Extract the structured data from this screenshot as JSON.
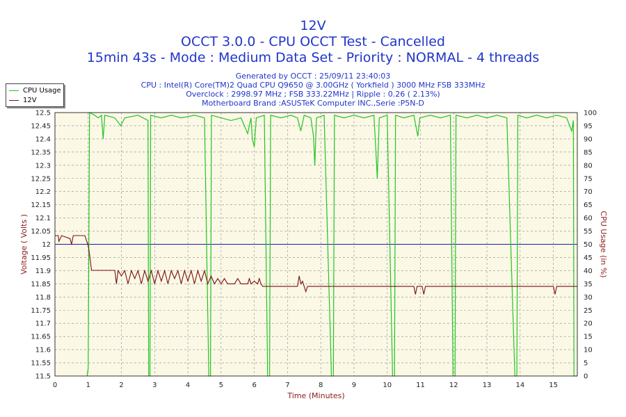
{
  "header": {
    "title": "12V",
    "subtitle": "OCCT 3.0.0 - CPU OCCT Test - Cancelled",
    "mode_line": "15min 43s - Mode : Medium Data Set - Priority : NORMAL - 4 threads",
    "generated": "Generated by OCCT : 25/09/11 23:40:03",
    "cpu": "CPU : Intel(R) Core(TM)2 Quad CPU Q9650 @ 3.00GHz ( Yorkfield ) 3000 MHz FSB 333MHz",
    "overclock": "Overclock : 2998.97 MHz ; FSB 333.22MHz | Ripple : 0.26 ( 2.13%)",
    "motherboard": "Motherboard Brand :ASUSTeK Computer INC.,Serie :P5N-D"
  },
  "legend": {
    "items": [
      "CPU Usage",
      "12V"
    ]
  },
  "colors": {
    "cpu": "#22c422",
    "volt": "#7a1010",
    "ref": "#1a1aa8",
    "plot_bg": "#fbf8e6",
    "grid": "#8a8a8a",
    "label": "#8b1a1a"
  },
  "chart_data": {
    "type": "line",
    "xlabel": "Time (Minutes)",
    "ylabel_left": "Voltage ( Volts )",
    "ylabel_right": "CPU Usage (in %)",
    "xlim": [
      0,
      15.72
    ],
    "ylim_left": [
      11.5,
      12.5
    ],
    "ylim_right": [
      0,
      100
    ],
    "x_ticks": [
      0,
      1,
      2,
      3,
      4,
      5,
      6,
      7,
      8,
      9,
      10,
      11,
      12,
      13,
      14,
      15
    ],
    "y_left_ticks": [
      "11.5",
      "11.55",
      "11.6",
      "11.65",
      "11.7",
      "11.75",
      "11.8",
      "11.85",
      "11.9",
      "11.95",
      "12",
      "12.05",
      "12.1",
      "12.15",
      "12.2",
      "12.25",
      "12.3",
      "12.35",
      "12.4",
      "12.45",
      "12.5"
    ],
    "y_right_ticks": [
      0,
      5,
      10,
      15,
      20,
      25,
      30,
      35,
      40,
      45,
      50,
      55,
      60,
      65,
      70,
      75,
      80,
      85,
      90,
      95,
      100
    ],
    "grid": true,
    "legend_position": "top-left",
    "reference_line": {
      "axis": "left",
      "y": 12.0
    },
    "series": [
      {
        "name": "CPU Usage",
        "axis": "right",
        "points": [
          [
            0.97,
            0
          ],
          [
            1.0,
            3
          ],
          [
            1.04,
            100
          ],
          [
            1.2,
            99
          ],
          [
            1.3,
            98
          ],
          [
            1.4,
            99
          ],
          [
            1.45,
            90
          ],
          [
            1.5,
            99
          ],
          [
            1.8,
            98
          ],
          [
            1.98,
            95
          ],
          [
            2.1,
            98
          ],
          [
            2.5,
            99
          ],
          [
            2.8,
            97
          ],
          [
            2.82,
            0
          ],
          [
            2.86,
            0
          ],
          [
            2.88,
            99
          ],
          [
            3.2,
            98
          ],
          [
            3.5,
            99
          ],
          [
            3.8,
            98
          ],
          [
            4.2,
            99
          ],
          [
            4.5,
            98
          ],
          [
            4.63,
            0
          ],
          [
            4.68,
            0
          ],
          [
            4.71,
            99
          ],
          [
            5.0,
            98
          ],
          [
            5.3,
            97
          ],
          [
            5.6,
            98
          ],
          [
            5.8,
            92
          ],
          [
            5.9,
            98
          ],
          [
            5.94,
            90
          ],
          [
            6.0,
            87
          ],
          [
            6.06,
            98
          ],
          [
            6.3,
            99
          ],
          [
            6.4,
            0
          ],
          [
            6.46,
            0
          ],
          [
            6.49,
            99
          ],
          [
            6.8,
            98
          ],
          [
            7.1,
            99
          ],
          [
            7.3,
            98
          ],
          [
            7.4,
            93
          ],
          [
            7.5,
            99
          ],
          [
            7.7,
            98
          ],
          [
            7.78,
            91
          ],
          [
            7.82,
            80
          ],
          [
            7.87,
            98
          ],
          [
            8.1,
            99
          ],
          [
            8.32,
            0
          ],
          [
            8.38,
            0
          ],
          [
            8.41,
            99
          ],
          [
            8.7,
            98
          ],
          [
            9.0,
            99
          ],
          [
            9.3,
            98
          ],
          [
            9.6,
            99
          ],
          [
            9.66,
            85
          ],
          [
            9.7,
            75
          ],
          [
            9.76,
            98
          ],
          [
            10.0,
            99
          ],
          [
            10.16,
            0
          ],
          [
            10.22,
            0
          ],
          [
            10.25,
            99
          ],
          [
            10.5,
            98
          ],
          [
            10.8,
            99
          ],
          [
            10.92,
            91
          ],
          [
            10.98,
            98
          ],
          [
            11.3,
            99
          ],
          [
            11.6,
            98
          ],
          [
            11.9,
            99
          ],
          [
            11.98,
            0
          ],
          [
            12.04,
            0
          ],
          [
            12.07,
            99
          ],
          [
            12.4,
            98
          ],
          [
            12.7,
            99
          ],
          [
            13.0,
            98
          ],
          [
            13.3,
            99
          ],
          [
            13.6,
            98
          ],
          [
            13.84,
            0
          ],
          [
            13.9,
            0
          ],
          [
            13.93,
            99
          ],
          [
            14.2,
            98
          ],
          [
            14.5,
            99
          ],
          [
            14.8,
            98
          ],
          [
            15.1,
            99
          ],
          [
            15.4,
            98
          ],
          [
            15.55,
            93
          ],
          [
            15.6,
            97
          ],
          [
            15.62,
            0
          ],
          [
            15.72,
            0
          ]
        ]
      },
      {
        "name": "12V",
        "axis": "left",
        "points": [
          [
            0,
            12.033
          ],
          [
            0.1,
            12.033
          ],
          [
            0.12,
            12.011
          ],
          [
            0.2,
            12.033
          ],
          [
            0.45,
            12.022
          ],
          [
            0.5,
            12.0
          ],
          [
            0.55,
            12.033
          ],
          [
            0.6,
            12.033
          ],
          [
            0.9,
            12.033
          ],
          [
            1.0,
            11.995
          ],
          [
            1.05,
            11.953
          ],
          [
            1.1,
            11.901
          ],
          [
            1.8,
            11.901
          ],
          [
            1.85,
            11.85
          ],
          [
            1.9,
            11.9
          ],
          [
            2.0,
            11.88
          ],
          [
            2.1,
            11.9
          ],
          [
            2.2,
            11.85
          ],
          [
            2.3,
            11.9
          ],
          [
            2.4,
            11.87
          ],
          [
            2.5,
            11.9
          ],
          [
            2.6,
            11.85
          ],
          [
            2.7,
            11.9
          ],
          [
            2.8,
            11.86
          ],
          [
            2.9,
            11.9
          ],
          [
            3.0,
            11.85
          ],
          [
            3.1,
            11.9
          ],
          [
            3.2,
            11.86
          ],
          [
            3.3,
            11.9
          ],
          [
            3.4,
            11.85
          ],
          [
            3.5,
            11.9
          ],
          [
            3.6,
            11.87
          ],
          [
            3.7,
            11.9
          ],
          [
            3.8,
            11.85
          ],
          [
            3.9,
            11.9
          ],
          [
            4.0,
            11.86
          ],
          [
            4.1,
            11.9
          ],
          [
            4.2,
            11.85
          ],
          [
            4.3,
            11.9
          ],
          [
            4.4,
            11.86
          ],
          [
            4.5,
            11.9
          ],
          [
            4.6,
            11.85
          ],
          [
            4.7,
            11.88
          ],
          [
            4.8,
            11.85
          ],
          [
            4.9,
            11.87
          ],
          [
            5.0,
            11.85
          ],
          [
            5.1,
            11.87
          ],
          [
            5.2,
            11.85
          ],
          [
            5.4,
            11.85
          ],
          [
            5.5,
            11.87
          ],
          [
            5.6,
            11.85
          ],
          [
            5.8,
            11.85
          ],
          [
            5.85,
            11.87
          ],
          [
            5.9,
            11.85
          ],
          [
            6.0,
            11.86
          ],
          [
            6.1,
            11.85
          ],
          [
            6.15,
            11.87
          ],
          [
            6.2,
            11.85
          ],
          [
            6.25,
            11.84
          ],
          [
            7.0,
            11.84
          ],
          [
            7.3,
            11.84
          ],
          [
            7.35,
            11.88
          ],
          [
            7.4,
            11.85
          ],
          [
            7.45,
            11.86
          ],
          [
            7.5,
            11.84
          ],
          [
            7.55,
            11.82
          ],
          [
            7.6,
            11.84
          ],
          [
            10.8,
            11.84
          ],
          [
            10.85,
            11.81
          ],
          [
            10.9,
            11.84
          ],
          [
            11.05,
            11.84
          ],
          [
            11.1,
            11.81
          ],
          [
            11.15,
            11.84
          ],
          [
            15.0,
            11.84
          ],
          [
            15.05,
            11.81
          ],
          [
            15.1,
            11.84
          ],
          [
            15.72,
            11.84
          ]
        ]
      }
    ]
  }
}
